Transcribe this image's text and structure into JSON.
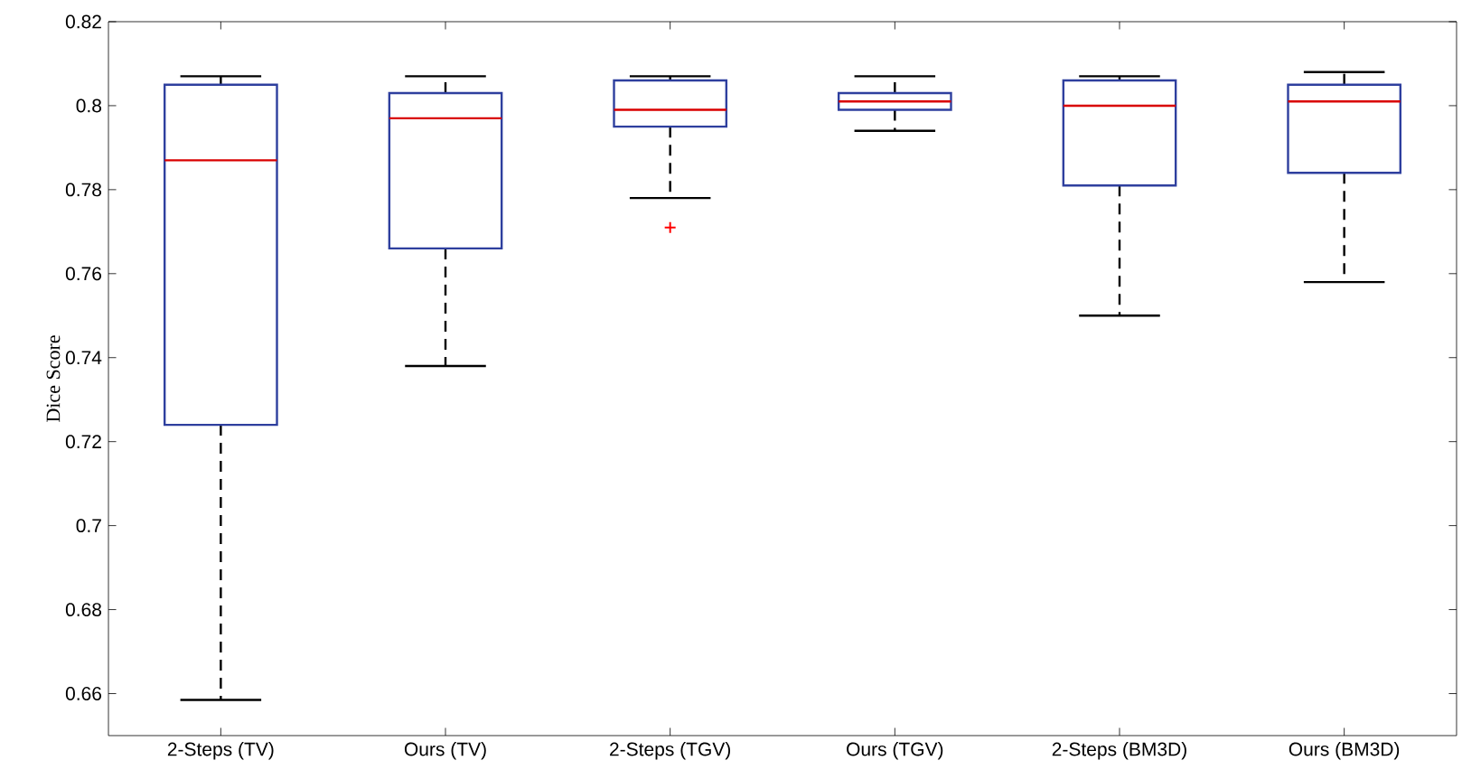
{
  "chart_data": {
    "type": "box",
    "ylabel": "Dice Score",
    "categories": [
      "2-Steps (TV)",
      "Ours (TV)",
      "2-Steps (TGV)",
      "Ours (TGV)",
      "2-Steps (BM3D)",
      "Ours (BM3D)"
    ],
    "boxes": [
      {
        "low": 0.6585,
        "q1": 0.724,
        "median": 0.787,
        "q3": 0.805,
        "high": 0.807
      },
      {
        "low": 0.738,
        "q1": 0.766,
        "median": 0.797,
        "q3": 0.803,
        "high": 0.807
      },
      {
        "low": 0.778,
        "q1": 0.795,
        "median": 0.799,
        "q3": 0.806,
        "high": 0.807,
        "outliers": [
          0.771
        ]
      },
      {
        "low": 0.794,
        "q1": 0.799,
        "median": 0.801,
        "q3": 0.803,
        "high": 0.807
      },
      {
        "low": 0.75,
        "q1": 0.781,
        "median": 0.8,
        "q3": 0.806,
        "high": 0.807
      },
      {
        "low": 0.758,
        "q1": 0.784,
        "median": 0.801,
        "q3": 0.805,
        "high": 0.808
      }
    ],
    "color": "#2e3f9e",
    "ylim": [
      0.65,
      0.82
    ],
    "yticks": [
      0.66,
      0.68,
      0.7,
      0.72,
      0.74,
      0.76,
      0.78,
      0.8,
      0.82
    ],
    "grid": false
  }
}
